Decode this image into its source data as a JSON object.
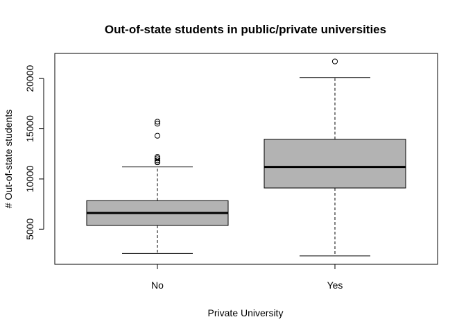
{
  "chart_data": {
    "type": "box",
    "title": "Out-of-state students in public/private universities",
    "xlabel": "Private University",
    "ylabel": "# Out-of-state students",
    "categories": [
      "No",
      "Yes"
    ],
    "ylim": [
      1500,
      22500
    ],
    "yticks": [
      5000,
      10000,
      15000,
      20000
    ],
    "grid": false,
    "box_color": "#b3b3b3",
    "boxes": [
      {
        "category": "No",
        "whisker_low": 2580,
        "q1": 5370,
        "median": 6610,
        "q3": 7840,
        "whisker_high": 11200,
        "outliers": [
          11650,
          11700,
          11850,
          12050,
          12200,
          14300,
          15500,
          15700
        ]
      },
      {
        "category": "Yes",
        "whisker_low": 2340,
        "q1": 9100,
        "median": 11200,
        "q3": 13950,
        "whisker_high": 20100,
        "outliers": [
          21700
        ]
      }
    ]
  }
}
